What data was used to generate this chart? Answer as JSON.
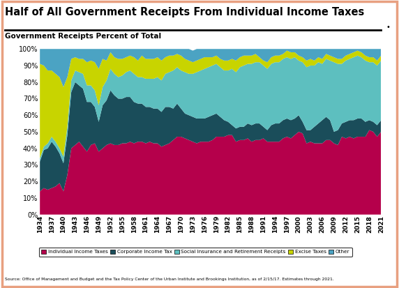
{
  "title": "Half of All Government Receipts From Individual Income Taxes",
  "subtitle": "Government Receipts Percent of Total",
  "source": "Source: Office of Management and Budget and the Tax Policy Center of the Urban Institute and Brookings Institution, as of 2/15/17. Estimates through 2021.",
  "years": [
    1934,
    1935,
    1936,
    1937,
    1938,
    1939,
    1940,
    1941,
    1942,
    1943,
    1944,
    1945,
    1946,
    1947,
    1948,
    1949,
    1950,
    1951,
    1952,
    1953,
    1954,
    1955,
    1956,
    1957,
    1958,
    1959,
    1960,
    1961,
    1962,
    1963,
    1964,
    1965,
    1966,
    1967,
    1968,
    1969,
    1970,
    1971,
    1972,
    1973,
    1974,
    1975,
    1976,
    1977,
    1978,
    1979,
    1980,
    1981,
    1982,
    1983,
    1984,
    1985,
    1986,
    1987,
    1988,
    1989,
    1990,
    1991,
    1992,
    1993,
    1994,
    1995,
    1996,
    1997,
    1998,
    1999,
    2000,
    2001,
    2002,
    2003,
    2004,
    2005,
    2006,
    2007,
    2008,
    2009,
    2010,
    2011,
    2012,
    2013,
    2014,
    2015,
    2016,
    2017,
    2018,
    2019,
    2020,
    2021
  ],
  "individual_income_tax": [
    14,
    16,
    15,
    16,
    17,
    19,
    14,
    24,
    40,
    42,
    44,
    41,
    38,
    42,
    43,
    38,
    40,
    42,
    43,
    42,
    42,
    43,
    43,
    44,
    43,
    44,
    44,
    43,
    44,
    43,
    43,
    41,
    42,
    43,
    45,
    47,
    47,
    46,
    45,
    44,
    43,
    44,
    44,
    44,
    45,
    47,
    47,
    47,
    48,
    48,
    44,
    45,
    45,
    46,
    44,
    45,
    45,
    46,
    44,
    44,
    44,
    44,
    46,
    47,
    46,
    48,
    50,
    49,
    43,
    44,
    43,
    43,
    43,
    45,
    45,
    43,
    42,
    47,
    46,
    47,
    46,
    47,
    47,
    47,
    51,
    50,
    47,
    50
  ],
  "corporate_income_tax": [
    18,
    23,
    25,
    28,
    24,
    18,
    17,
    24,
    34,
    38,
    34,
    35,
    30,
    26,
    22,
    18,
    26,
    27,
    32,
    30,
    28,
    27,
    28,
    27,
    25,
    23,
    23,
    22,
    21,
    21,
    21,
    21,
    23,
    22,
    19,
    20,
    17,
    15,
    15,
    15,
    15,
    14,
    14,
    15,
    15,
    14,
    12,
    10,
    8,
    6,
    8,
    8,
    8,
    9,
    10,
    10,
    10,
    7,
    7,
    10,
    11,
    11,
    11,
    11,
    11,
    10,
    10,
    7,
    8,
    7,
    10,
    12,
    14,
    14,
    12,
    7,
    9,
    8,
    10,
    10,
    11,
    11,
    11,
    9,
    6,
    6,
    7,
    7
  ],
  "social_insurance": [
    2,
    2,
    3,
    3,
    3,
    3,
    4,
    5,
    7,
    7,
    8,
    9,
    10,
    10,
    10,
    10,
    11,
    12,
    13,
    13,
    13,
    14,
    15,
    16,
    17,
    16,
    16,
    17,
    17,
    18,
    19,
    19,
    20,
    21,
    23,
    22,
    23,
    25,
    25,
    26,
    28,
    29,
    30,
    30,
    30,
    30,
    30,
    30,
    31,
    34,
    34,
    36,
    37,
    36,
    37,
    37,
    37,
    37,
    37,
    37,
    37,
    37,
    37,
    37,
    37,
    37,
    33,
    36,
    38,
    39,
    37,
    37,
    34,
    35,
    36,
    42,
    40,
    36,
    37,
    37,
    38,
    38,
    37,
    37,
    35,
    36,
    36,
    36
  ],
  "excise_taxes": [
    57,
    49,
    44,
    40,
    41,
    43,
    42,
    30,
    13,
    8,
    8,
    9,
    14,
    15,
    17,
    22,
    17,
    12,
    10,
    10,
    11,
    10,
    9,
    9,
    10,
    10,
    13,
    12,
    12,
    12,
    12,
    12,
    10,
    10,
    9,
    8,
    9,
    8,
    8,
    7,
    7,
    7,
    7,
    6,
    5,
    5,
    5,
    6,
    6,
    6,
    7,
    6,
    6,
    5,
    5,
    5,
    3,
    3,
    4,
    4,
    4,
    4,
    3,
    4,
    4,
    3,
    3,
    3,
    4,
    4,
    3,
    3,
    3,
    3,
    3,
    3,
    3,
    3,
    3,
    3,
    3,
    3,
    3,
    3,
    3,
    3,
    3,
    3
  ],
  "other": [
    9,
    10,
    13,
    13,
    15,
    17,
    23,
    17,
    6,
    5,
    6,
    6,
    8,
    7,
    8,
    12,
    6,
    7,
    2,
    5,
    6,
    6,
    5,
    4,
    5,
    7,
    4,
    6,
    6,
    6,
    5,
    7,
    5,
    4,
    4,
    3,
    4,
    6,
    7,
    7,
    7,
    6,
    5,
    5,
    5,
    4,
    6,
    7,
    7,
    6,
    7,
    5,
    4,
    4,
    4,
    3,
    5,
    7,
    8,
    5,
    4,
    4,
    3,
    1,
    2,
    2,
    4,
    5,
    7,
    6,
    7,
    5,
    6,
    3,
    4,
    5,
    6,
    6,
    4,
    3,
    2,
    1,
    2,
    4,
    5,
    5,
    7,
    4
  ],
  "colors": {
    "individual_income_tax": "#B5004B",
    "corporate_income_tax": "#1A4D5A",
    "social_insurance": "#5DBFBF",
    "excise_taxes": "#C8D400",
    "other": "#4BA3C3"
  },
  "border_color": "#E8A080",
  "ylim": [
    0,
    100
  ],
  "yticks": [
    0,
    10,
    20,
    30,
    40,
    50,
    60,
    70,
    80,
    90,
    100
  ],
  "background_color": "#FFFFFF",
  "plot_bg_color": "#FFFFFF"
}
